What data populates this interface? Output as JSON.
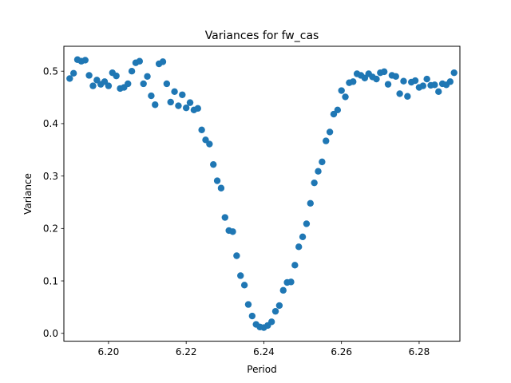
{
  "chart_data": {
    "type": "scatter",
    "title": "Variances for fw_cas",
    "xlabel": "Period",
    "ylabel": "Variance",
    "xlim": [
      6.1885,
      6.2905
    ],
    "ylim": [
      -0.015,
      0.5475
    ],
    "x_ticks": [
      6.2,
      6.22,
      6.24,
      6.26,
      6.28
    ],
    "x_tick_labels": [
      "6.20",
      "6.22",
      "6.24",
      "6.26",
      "6.28"
    ],
    "y_ticks": [
      0.0,
      0.1,
      0.2,
      0.3,
      0.4,
      0.5
    ],
    "y_tick_labels": [
      "0.0",
      "0.1",
      "0.2",
      "0.3",
      "0.4",
      "0.5"
    ],
    "grid": false,
    "legend": false,
    "marker_color": "#1f77b4",
    "series": [
      {
        "x": [
          6.19,
          6.191,
          6.192,
          6.193,
          6.194,
          6.195,
          6.196,
          6.197,
          6.198,
          6.199,
          6.2,
          6.201,
          6.202,
          6.203,
          6.204,
          6.205,
          6.206,
          6.207,
          6.208,
          6.209,
          6.21,
          6.211,
          6.212,
          6.213,
          6.214,
          6.215,
          6.216,
          6.217,
          6.218,
          6.219,
          6.22,
          6.221,
          6.222,
          6.223,
          6.224,
          6.225,
          6.226,
          6.227,
          6.228,
          6.229,
          6.23,
          6.231,
          6.232,
          6.233,
          6.234,
          6.235,
          6.236,
          6.237,
          6.238,
          6.239,
          6.24,
          6.241,
          6.242,
          6.243,
          6.244,
          6.245,
          6.246,
          6.247,
          6.248,
          6.249,
          6.25,
          6.251,
          6.252,
          6.253,
          6.254,
          6.255,
          6.256,
          6.257,
          6.258,
          6.259,
          6.26,
          6.261,
          6.262,
          6.263,
          6.264,
          6.265,
          6.266,
          6.267,
          6.268,
          6.269,
          6.27,
          6.271,
          6.272,
          6.273,
          6.274,
          6.275,
          6.276,
          6.277,
          6.278,
          6.279,
          6.28,
          6.281,
          6.282,
          6.283,
          6.284,
          6.285,
          6.286,
          6.287,
          6.288,
          6.289
        ],
        "y": [
          0.486,
          0.496,
          0.522,
          0.519,
          0.521,
          0.492,
          0.472,
          0.483,
          0.475,
          0.48,
          0.472,
          0.497,
          0.491,
          0.467,
          0.469,
          0.476,
          0.5,
          0.516,
          0.519,
          0.476,
          0.49,
          0.453,
          0.436,
          0.514,
          0.518,
          0.476,
          0.441,
          0.461,
          0.434,
          0.455,
          0.43,
          0.44,
          0.426,
          0.429,
          0.388,
          0.369,
          0.361,
          0.322,
          0.291,
          0.277,
          0.221,
          0.196,
          0.194,
          0.148,
          0.11,
          0.092,
          0.055,
          0.033,
          0.017,
          0.012,
          0.011,
          0.015,
          0.022,
          0.042,
          0.053,
          0.082,
          0.097,
          0.098,
          0.13,
          0.165,
          0.184,
          0.209,
          0.248,
          0.287,
          0.309,
          0.327,
          0.367,
          0.384,
          0.418,
          0.426,
          0.463,
          0.451,
          0.478,
          0.48,
          0.495,
          0.492,
          0.487,
          0.495,
          0.489,
          0.485,
          0.497,
          0.499,
          0.475,
          0.492,
          0.49,
          0.457,
          0.481,
          0.452,
          0.479,
          0.482,
          0.469,
          0.472,
          0.485,
          0.473,
          0.474,
          0.461,
          0.476,
          0.474,
          0.48,
          0.497
        ]
      }
    ]
  }
}
